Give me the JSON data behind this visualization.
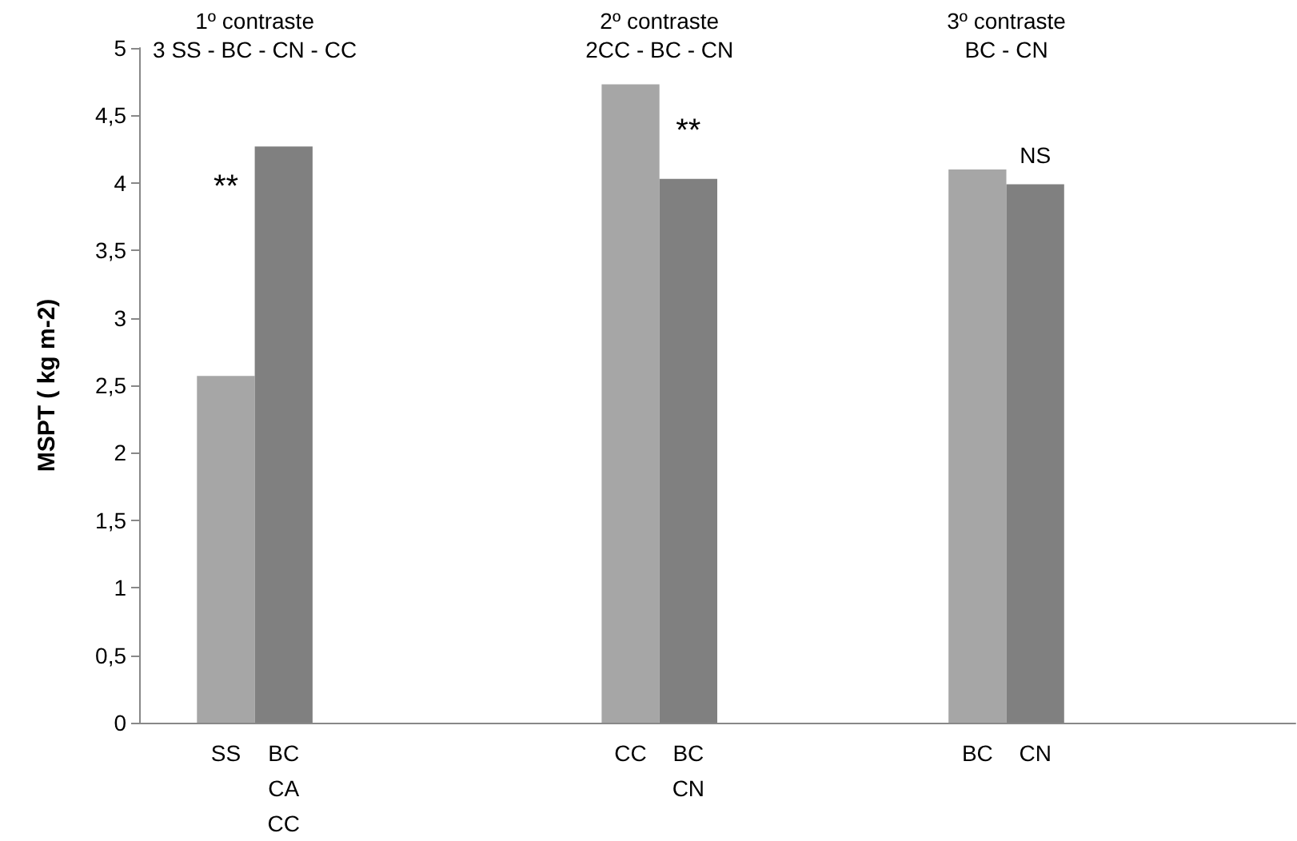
{
  "chart_data": {
    "type": "bar",
    "ylabel": "MSPT ( kg m-2)",
    "categories": [
      null,
      "SS",
      "BC\nCA\nCC",
      null,
      null,
      null,
      null,
      null,
      "CC",
      "BC\nCN",
      null,
      null,
      null,
      null,
      "BC",
      "CN",
      null,
      null,
      null,
      null
    ],
    "values": [
      null,
      2.57,
      4.27,
      null,
      null,
      null,
      null,
      null,
      4.73,
      4.03,
      null,
      null,
      null,
      null,
      4.1,
      3.99,
      null,
      null,
      null,
      null
    ],
    "colors": [
      null,
      "#a6a6a6",
      "#808080",
      null,
      null,
      null,
      null,
      null,
      "#a6a6a6",
      "#808080",
      null,
      null,
      null,
      null,
      "#a6a6a6",
      "#808080",
      null,
      null,
      null,
      null
    ],
    "ylim": [
      0,
      5
    ],
    "yticks": [
      0,
      {
        "value": 0.5,
        "label": "0,5"
      },
      1,
      {
        "value": 1.5,
        "label": "1,5"
      },
      2,
      {
        "value": 2.5,
        "label": "2,5"
      },
      3,
      {
        "value": 3.5,
        "label": "3,5"
      },
      4,
      {
        "value": 4.5,
        "label": "4,5"
      },
      5
    ],
    "grid": false,
    "annotations": [
      "1º contraste\n3 SS - BC - CN - CC",
      "2º contraste\n2CC - BC - CN",
      "3º contraste\nBC - CN",
      "**",
      "**",
      "NS"
    ]
  }
}
